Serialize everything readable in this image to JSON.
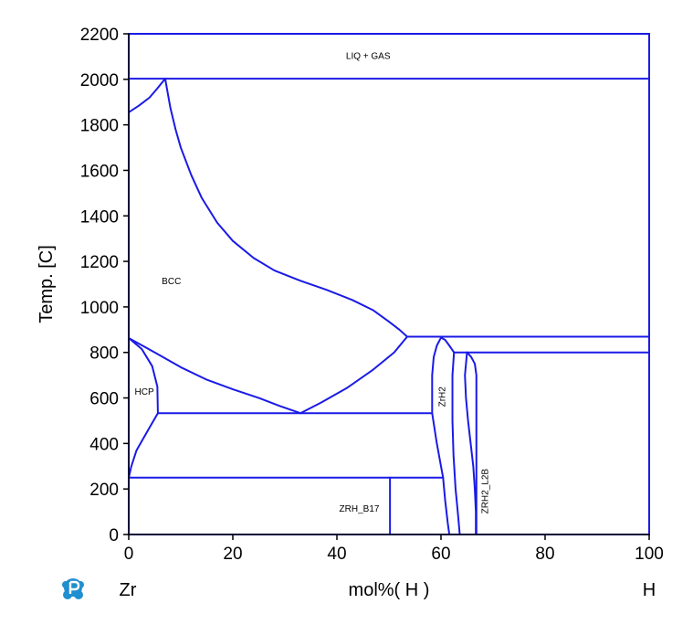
{
  "chart_data": {
    "type": "line",
    "title": "",
    "xlabel": "mol%( H )",
    "ylabel": "Temp. [C]",
    "xlim": [
      0,
      100
    ],
    "ylim": [
      0,
      2200
    ],
    "x_ticks": [
      0,
      20,
      40,
      60,
      80,
      100
    ],
    "y_ticks": [
      0,
      200,
      400,
      600,
      800,
      1000,
      1200,
      1400,
      1600,
      1800,
      2000,
      2200
    ],
    "x_tick_labels": [
      "0",
      "20",
      "40",
      "60",
      "80",
      "100"
    ],
    "y_tick_labels": [
      "0",
      "200",
      "400",
      "600",
      "800",
      "1000",
      "1200",
      "1400",
      "1600",
      "1800",
      "2000",
      "2200"
    ],
    "left_component": "Zr",
    "right_component": "H",
    "line_color": "#1a1ae6",
    "grid": false,
    "logo_icon": "thermo-calc-logo-icon",
    "phase_labels": [
      {
        "text": "LIQ + GAS",
        "x": 46,
        "y": 2090,
        "vertical": false
      },
      {
        "text": "BCC",
        "x": 8.2,
        "y": 1100,
        "vertical": false
      },
      {
        "text": "HCP",
        "x": 3.0,
        "y": 615,
        "vertical": false
      },
      {
        "text": "ZrH2",
        "x": 60.8,
        "y": 605,
        "vertical": true
      },
      {
        "text": "ZRH_B17",
        "x": 44.3,
        "y": 100,
        "vertical": false
      },
      {
        "text": "ZRH2_L2B",
        "x": 69.0,
        "y": 190,
        "vertical": true
      }
    ],
    "series": [
      {
        "values": [
          [
            0,
            2003
          ],
          [
            100,
            2003
          ]
        ]
      },
      {
        "values": [
          [
            0,
            1855
          ],
          [
            2.0,
            1885
          ],
          [
            4.0,
            1920
          ],
          [
            5.5,
            1960
          ],
          [
            7,
            2003
          ]
        ]
      },
      {
        "values": [
          [
            7,
            2003
          ],
          [
            8,
            1875
          ],
          [
            9,
            1780
          ],
          [
            10,
            1700
          ],
          [
            12,
            1580
          ],
          [
            14,
            1480
          ],
          [
            17,
            1370
          ],
          [
            20,
            1290
          ],
          [
            24,
            1215
          ],
          [
            28,
            1160
          ],
          [
            33,
            1115
          ],
          [
            38,
            1075
          ],
          [
            43,
            1030
          ],
          [
            47,
            985
          ],
          [
            50,
            935
          ],
          [
            52,
            900
          ],
          [
            53.5,
            869
          ]
        ]
      },
      {
        "values": [
          [
            53.5,
            869
          ],
          [
            100,
            869
          ]
        ]
      },
      {
        "values": [
          [
            0,
            863
          ],
          [
            5,
            800
          ],
          [
            10,
            735
          ],
          [
            15,
            680
          ],
          [
            20,
            638
          ],
          [
            25,
            600
          ],
          [
            29,
            565
          ],
          [
            33,
            533
          ]
        ]
      },
      {
        "values": [
          [
            0,
            863
          ],
          [
            2.5,
            815
          ],
          [
            4.5,
            740
          ],
          [
            5.5,
            650
          ],
          [
            5.6,
            533
          ]
        ]
      },
      {
        "values": [
          [
            0,
            250
          ],
          [
            0.5,
            300
          ],
          [
            1.5,
            370
          ],
          [
            3,
            430
          ],
          [
            4.5,
            490
          ],
          [
            5.6,
            533
          ]
        ]
      },
      {
        "values": [
          [
            5.6,
            533
          ],
          [
            58.3,
            533
          ]
        ]
      },
      {
        "values": [
          [
            33,
            533
          ],
          [
            37,
            580
          ],
          [
            42,
            645
          ],
          [
            47,
            725
          ],
          [
            51,
            800
          ],
          [
            53.5,
            869
          ]
        ]
      },
      {
        "values": [
          [
            0,
            250
          ],
          [
            60.4,
            250
          ]
        ]
      },
      {
        "values": [
          [
            50.2,
            250
          ],
          [
            50.2,
            0
          ]
        ]
      },
      {
        "values": [
          [
            60.0,
            865
          ],
          [
            59.2,
            830
          ],
          [
            58.6,
            780
          ],
          [
            58.3,
            700
          ],
          [
            58.3,
            600
          ],
          [
            58.3,
            533
          ],
          [
            59.2,
            400
          ],
          [
            60.0,
            300
          ],
          [
            60.4,
            250
          ],
          [
            60.8,
            150
          ],
          [
            61.3,
            50
          ],
          [
            61.6,
            0
          ]
        ]
      },
      {
        "values": [
          [
            60.0,
            865
          ],
          [
            60.8,
            855
          ],
          [
            61.6,
            830
          ],
          [
            62.5,
            800
          ]
        ]
      },
      {
        "values": [
          [
            62.5,
            800
          ],
          [
            62.2,
            700
          ],
          [
            62.2,
            500
          ],
          [
            62.4,
            350
          ],
          [
            62.8,
            200
          ],
          [
            63.3,
            80
          ],
          [
            63.6,
            0
          ]
        ]
      },
      {
        "values": [
          [
            62.5,
            800
          ],
          [
            100,
            800
          ]
        ]
      },
      {
        "values": [
          [
            65.0,
            800
          ],
          [
            64.6,
            700
          ],
          [
            64.8,
            600
          ],
          [
            65.2,
            500
          ],
          [
            65.7,
            400
          ],
          [
            66.2,
            300
          ],
          [
            66.5,
            200
          ],
          [
            66.7,
            100
          ],
          [
            66.7,
            0
          ]
        ]
      },
      {
        "values": [
          [
            65.0,
            800
          ],
          [
            65.8,
            780
          ],
          [
            66.5,
            750
          ],
          [
            66.8,
            700
          ],
          [
            66.8,
            0
          ]
        ]
      }
    ]
  }
}
